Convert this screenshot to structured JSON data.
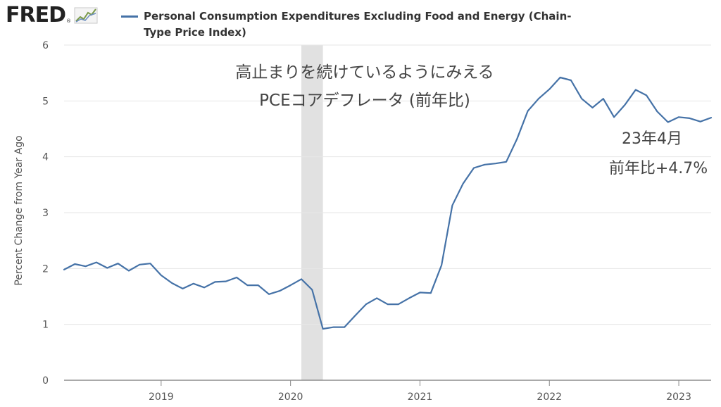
{
  "header": {
    "logo_text": "FRED",
    "logo_mark": "®",
    "logo_icon": "line-chart-icon",
    "series_title": "Personal Consumption Expenditures Excluding Food and Energy (Chain-Type Price Index)",
    "series_color": "#4572a7"
  },
  "chart_data": {
    "type": "line",
    "ylabel": "Percent Change from Year Ago",
    "ylim": [
      0,
      6
    ],
    "yticks": [
      0,
      1,
      2,
      3,
      4,
      5,
      6
    ],
    "xlim": [
      "2018-04",
      "2023-04"
    ],
    "xticks": [
      "2019",
      "2020",
      "2021",
      "2022",
      "2023"
    ],
    "grid": "horizontal",
    "recession_band": [
      "2020-02",
      "2020-04"
    ],
    "annotations": [
      {
        "lines": [
          "高止まりを続けているようにみえる",
          "PCEコアデフレータ (前年比)"
        ]
      },
      {
        "lines": [
          "23年4月",
          "前年比+4.7%"
        ]
      }
    ],
    "series": [
      {
        "name": "Personal Consumption Expenditures Excluding Food and Energy (Chain-Type Price Index)",
        "color": "#4572a7",
        "x": [
          "2018-04",
          "2018-05",
          "2018-06",
          "2018-07",
          "2018-08",
          "2018-09",
          "2018-10",
          "2018-11",
          "2018-12",
          "2019-01",
          "2019-02",
          "2019-03",
          "2019-04",
          "2019-05",
          "2019-06",
          "2019-07",
          "2019-08",
          "2019-09",
          "2019-10",
          "2019-11",
          "2019-12",
          "2020-01",
          "2020-02",
          "2020-03",
          "2020-04",
          "2020-05",
          "2020-06",
          "2020-07",
          "2020-08",
          "2020-09",
          "2020-10",
          "2020-11",
          "2020-12",
          "2021-01",
          "2021-02",
          "2021-03",
          "2021-04",
          "2021-05",
          "2021-06",
          "2021-07",
          "2021-08",
          "2021-09",
          "2021-10",
          "2021-11",
          "2021-12",
          "2022-01",
          "2022-02",
          "2022-03",
          "2022-04",
          "2022-05",
          "2022-06",
          "2022-07",
          "2022-08",
          "2022-09",
          "2022-10",
          "2022-11",
          "2022-12",
          "2023-01",
          "2023-02",
          "2023-03",
          "2023-04"
        ],
        "values": [
          1.98,
          2.08,
          2.04,
          2.11,
          2.01,
          2.09,
          1.96,
          2.07,
          2.09,
          1.88,
          1.74,
          1.64,
          1.73,
          1.66,
          1.76,
          1.77,
          1.84,
          1.7,
          1.7,
          1.54,
          1.6,
          1.7,
          1.81,
          1.62,
          0.92,
          0.95,
          0.95,
          1.16,
          1.36,
          1.47,
          1.36,
          1.36,
          1.47,
          1.57,
          1.56,
          2.06,
          3.13,
          3.52,
          3.8,
          3.86,
          3.88,
          3.91,
          4.32,
          4.82,
          5.04,
          5.21,
          5.42,
          5.37,
          5.04,
          4.88,
          5.04,
          4.71,
          4.93,
          5.2,
          5.1,
          4.81,
          4.62,
          4.71,
          4.69,
          4.63,
          4.7
        ]
      }
    ]
  }
}
